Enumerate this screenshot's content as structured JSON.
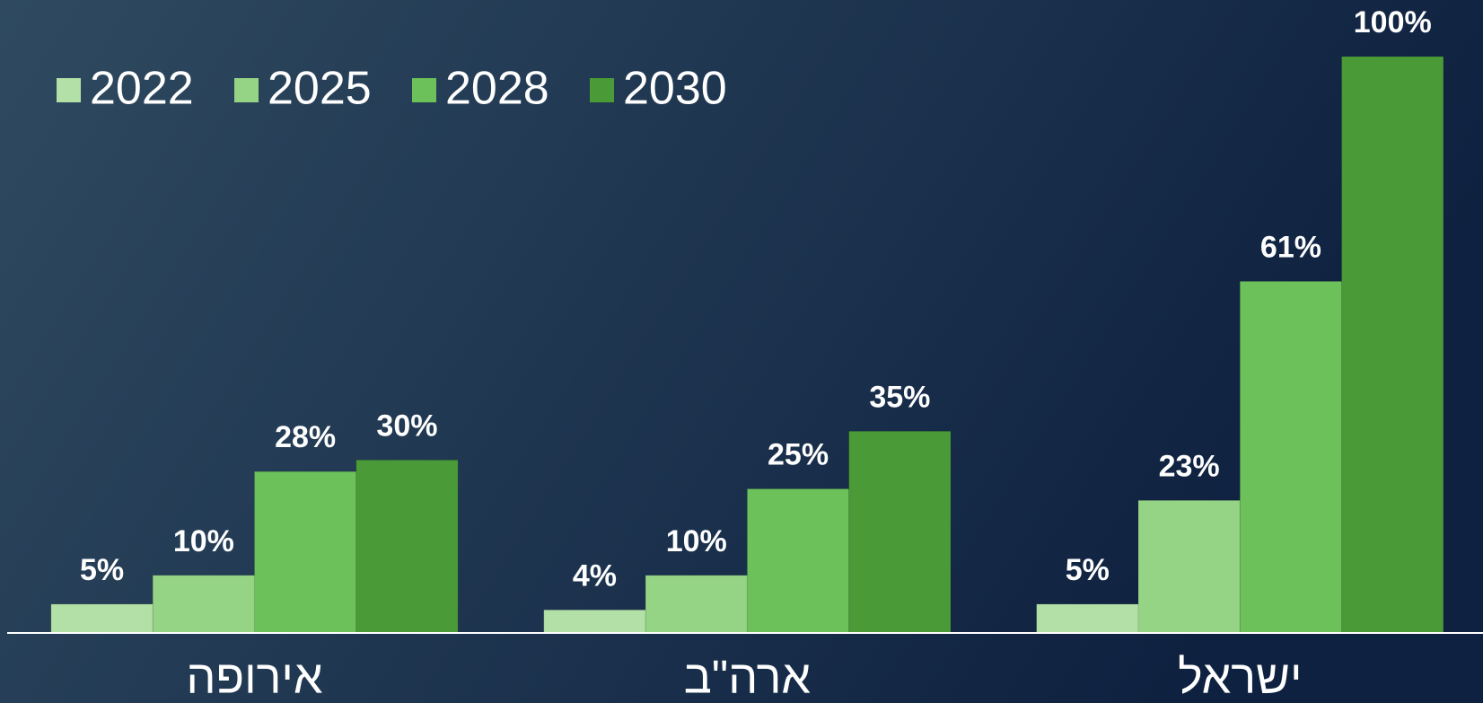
{
  "chart_data": {
    "type": "bar",
    "categories": [
      "אירופה",
      "ארה\"ב",
      "ישראל"
    ],
    "series": [
      {
        "name": "2022",
        "color": "#b3e0a6",
        "values": [
          5,
          4,
          5
        ],
        "value_labels": [
          "5%",
          "4%",
          "5%"
        ]
      },
      {
        "name": "2025",
        "color": "#95d385",
        "values": [
          10,
          10,
          23
        ],
        "value_labels": [
          "10%",
          "10%",
          "23%"
        ]
      },
      {
        "name": "2028",
        "color": "#6cc15a",
        "values": [
          28,
          25,
          61
        ],
        "value_labels": [
          "28%",
          "25%",
          "61%"
        ]
      },
      {
        "name": "2030",
        "color": "#4a9a37",
        "values": [
          30,
          35,
          100
        ],
        "value_labels": [
          "30%",
          "35%",
          "100%"
        ]
      }
    ],
    "ylim": [
      0,
      100
    ],
    "legend": "top-left"
  }
}
